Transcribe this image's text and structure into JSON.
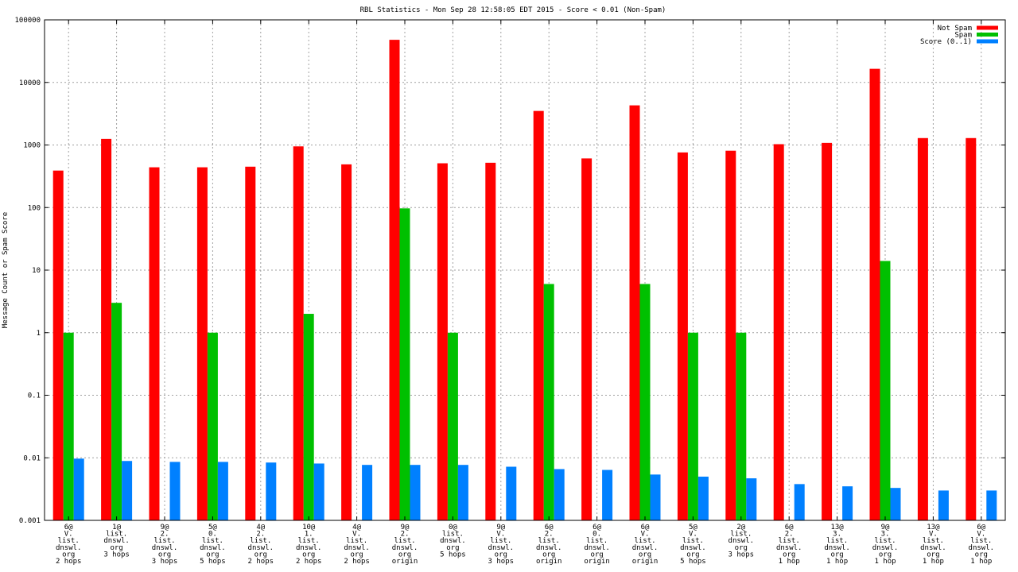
{
  "chart_data": {
    "type": "bar",
    "title": "RBL Statistics - Mon Sep 28 12:58:05 EDT 2015 - Score < 0.01 (Non-Spam)",
    "ylabel": "Message Count or Spam Score",
    "xlabel": "",
    "yscale": "log",
    "ylim": [
      0.001,
      100000
    ],
    "yticks": [
      "0.001",
      "0.01",
      "0.1",
      "1",
      "10",
      "100",
      "1000",
      "10000",
      "100000"
    ],
    "grid": true,
    "legend_position": "top-right",
    "categories": [
      [
        "6@",
        "V.",
        "list.",
        "dnswl.",
        "org",
        "2 hops"
      ],
      [
        "1@",
        "list.",
        "dnswl.",
        "org",
        "3 hops"
      ],
      [
        "9@",
        "2.",
        "list.",
        "dnswl.",
        "org",
        "3 hops"
      ],
      [
        "5@",
        "0.",
        "list.",
        "dnswl.",
        "org",
        "5 hops"
      ],
      [
        "4@",
        "2.",
        "list.",
        "dnswl.",
        "org",
        "2 hops"
      ],
      [
        "10@",
        "1.",
        "list.",
        "dnswl.",
        "org",
        "2 hops"
      ],
      [
        "4@",
        "V.",
        "list.",
        "dnswl.",
        "org",
        "2 hops"
      ],
      [
        "9@",
        "2.",
        "list.",
        "dnswl.",
        "org",
        "origin"
      ],
      [
        "0@",
        "list.",
        "dnswl.",
        "org",
        "5 hops"
      ],
      [
        "9@",
        "V.",
        "list.",
        "dnswl.",
        "org",
        "3 hops"
      ],
      [
        "6@",
        "2.",
        "list.",
        "dnswl.",
        "org",
        "origin"
      ],
      [
        "6@",
        "0.",
        "list.",
        "dnswl.",
        "org",
        "origin"
      ],
      [
        "6@",
        "V.",
        "list.",
        "dnswl.",
        "org",
        "origin"
      ],
      [
        "5@",
        "V.",
        "list.",
        "dnswl.",
        "org",
        "5 hops"
      ],
      [
        "2@",
        "list.",
        "dnswl.",
        "org",
        "3 hops"
      ],
      [
        "6@",
        "2.",
        "list.",
        "dnswl.",
        "org",
        "1 hop"
      ],
      [
        "13@",
        "3.",
        "list.",
        "dnswl.",
        "org",
        "1 hop"
      ],
      [
        "9@",
        "3.",
        "list.",
        "dnswl.",
        "org",
        "1 hop"
      ],
      [
        "13@",
        "V.",
        "list.",
        "dnswl.",
        "org",
        "1 hop"
      ],
      [
        "6@",
        "V.",
        "list.",
        "dnswl.",
        "org",
        "1 hop"
      ]
    ],
    "series": [
      {
        "name": "Not Spam",
        "color": "#ff0000",
        "values": [
          390,
          1250,
          440,
          440,
          450,
          950,
          490,
          48000,
          510,
          520,
          3500,
          610,
          4300,
          760,
          810,
          1030,
          1080,
          16500,
          1290,
          1290
        ]
      },
      {
        "name": "Spam",
        "color": "#00c000",
        "values": [
          1,
          3,
          null,
          1,
          null,
          2,
          null,
          97,
          1,
          null,
          6,
          null,
          6,
          1,
          1,
          null,
          null,
          14,
          null,
          null
        ]
      },
      {
        "name": "Score (0..1)",
        "color": "#0080ff",
        "values": [
          0.0097,
          0.0089,
          0.0086,
          0.0086,
          0.0084,
          0.0081,
          0.0077,
          0.0077,
          0.0077,
          0.0072,
          0.0066,
          0.0064,
          0.0054,
          0.005,
          0.0047,
          0.0038,
          0.0035,
          0.0033,
          0.003,
          0.003
        ]
      }
    ]
  }
}
